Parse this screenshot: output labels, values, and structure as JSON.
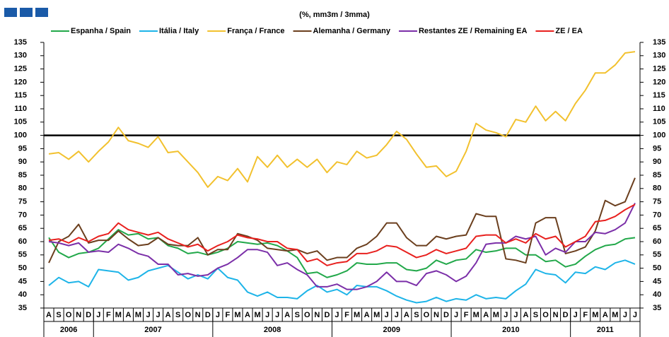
{
  "chart_data": {
    "type": "line",
    "subtitle": "(%, mm3m / 3mma)",
    "categories": [
      "A",
      "S",
      "O",
      "N",
      "D",
      "J",
      "F",
      "M",
      "A",
      "M",
      "J",
      "J",
      "A",
      "S",
      "O",
      "N",
      "D",
      "J",
      "F",
      "M",
      "A",
      "M",
      "J",
      "J",
      "A",
      "S",
      "O",
      "N",
      "D",
      "J",
      "F",
      "M",
      "A",
      "M",
      "J",
      "J",
      "A",
      "S",
      "O",
      "N",
      "D",
      "J",
      "F",
      "M",
      "A",
      "M",
      "J",
      "J",
      "A",
      "S",
      "O",
      "N",
      "D",
      "J",
      "F",
      "M",
      "A",
      "M",
      "J",
      "J"
    ],
    "x_groups": [
      "2006",
      "2007",
      "2008",
      "2009",
      "2010",
      "2011"
    ],
    "ylim": [
      35,
      135
    ],
    "yticks": [
      35,
      40,
      45,
      50,
      55,
      60,
      65,
      70,
      75,
      80,
      85,
      90,
      95,
      100,
      105,
      110,
      115,
      120,
      125,
      130,
      135
    ],
    "reference_line": 100,
    "series": [
      {
        "name": "Espanha / Spain",
        "color": "#22a84a",
        "values": [
          61.5,
          56,
          54,
          55.5,
          56,
          57.5,
          61,
          64.5,
          62.5,
          63,
          61,
          61.5,
          58.5,
          57.5,
          55.5,
          56,
          55,
          56,
          57.5,
          60,
          59.5,
          59,
          59.5,
          58.5,
          56.5,
          54,
          48,
          48.5,
          46.5,
          47.5,
          49,
          52,
          51.5,
          51.5,
          52,
          52,
          49.5,
          49,
          50,
          53,
          51.5,
          53,
          53.5,
          57,
          56,
          56.5,
          57.5,
          57.5,
          55,
          55,
          52.5,
          53,
          50.5,
          51.5,
          54.5,
          57,
          58.5,
          59,
          61,
          61.5
        ]
      },
      {
        "name": "Itália / Italy",
        "color": "#1eb4e8",
        "values": [
          43.5,
          46.5,
          44.5,
          45,
          43,
          49.5,
          49,
          48.5,
          45.5,
          46.5,
          49,
          50,
          51,
          48.5,
          46,
          47.5,
          46,
          50,
          46.5,
          45.5,
          41,
          39.5,
          41,
          39,
          39,
          38.5,
          41.5,
          43.5,
          41,
          42,
          40,
          43.5,
          43,
          43,
          41.5,
          39.5,
          38,
          37,
          37.5,
          39,
          37.5,
          38.5,
          38,
          40,
          38.5,
          39,
          38.5,
          41.5,
          44,
          49.5,
          48,
          47.5,
          44.5,
          48.5,
          48,
          50.5,
          49.5,
          52,
          53,
          51.5
        ]
      },
      {
        "name": "França / France",
        "color": "#f2c12e",
        "values": [
          93,
          93.5,
          91,
          94,
          90,
          94,
          97.5,
          103,
          98,
          97,
          95.5,
          99.5,
          93.5,
          94,
          90,
          86,
          80.5,
          84.5,
          83,
          87.5,
          82.5,
          92,
          88,
          92.5,
          88,
          91,
          88,
          91,
          86,
          90,
          89,
          94,
          91.5,
          92.5,
          96.5,
          101.5,
          98.5,
          93,
          88,
          88.5,
          84.5,
          86.5,
          94,
          104.5,
          102,
          101,
          99.5,
          106,
          105,
          111,
          105.5,
          109,
          105.5,
          112,
          117,
          123.5,
          123.5,
          126.5,
          131,
          131.5
        ]
      },
      {
        "name": "Alemanha / Germany",
        "color": "#6b3f1e",
        "values": [
          52,
          60,
          62,
          66.5,
          59.5,
          60.5,
          60.5,
          64,
          61,
          58.5,
          59,
          61.5,
          59,
          58.5,
          58.5,
          61.5,
          55,
          57,
          57,
          63,
          62,
          60.5,
          57.5,
          57,
          56.5,
          57,
          55.5,
          56.5,
          53,
          54,
          54,
          57.5,
          59,
          62,
          67,
          67,
          61.5,
          58.5,
          58.5,
          62,
          61,
          62,
          62.5,
          70.5,
          69.5,
          69.5,
          53.5,
          53,
          52,
          67,
          69,
          69,
          55.5,
          56.5,
          58,
          64,
          75.5,
          73.5,
          75,
          84
        ]
      },
      {
        "name": "Restantes ZE / Remaining EA",
        "color": "#7b2fa8",
        "values": [
          60,
          59.5,
          58.5,
          59.5,
          56,
          56.5,
          56,
          59,
          57.5,
          55.5,
          54.5,
          51.5,
          51.5,
          47.5,
          48,
          47,
          47.5,
          50,
          51.5,
          54,
          57,
          57,
          56,
          51,
          52,
          49.5,
          47.5,
          43,
          43,
          44,
          42,
          42,
          43,
          45,
          48.5,
          45,
          45,
          43.5,
          48,
          49,
          47.5,
          45,
          47,
          52,
          59,
          59.5,
          59.5,
          62,
          61,
          62,
          55,
          57.5,
          56,
          60,
          60,
          63.5,
          63,
          64.5,
          67,
          74.5
        ]
      },
      {
        "name": "ZE / EA",
        "color": "#e8201e",
        "values": [
          60.5,
          61,
          59.5,
          61.5,
          60,
          62,
          63,
          67,
          64.5,
          63.5,
          62.5,
          63.5,
          61,
          59.5,
          58,
          59,
          56.5,
          58.5,
          60,
          62.5,
          61.5,
          61,
          60,
          60,
          57.5,
          57,
          52.5,
          53.5,
          51,
          52,
          52.5,
          55.5,
          55.5,
          56.5,
          58.5,
          58,
          56,
          54,
          55,
          57,
          55.5,
          56.5,
          57.5,
          62,
          62.5,
          62.5,
          59.5,
          61,
          59.5,
          63,
          61,
          62,
          58,
          60,
          62,
          67.5,
          68,
          69.5,
          72,
          74
        ]
      }
    ]
  }
}
